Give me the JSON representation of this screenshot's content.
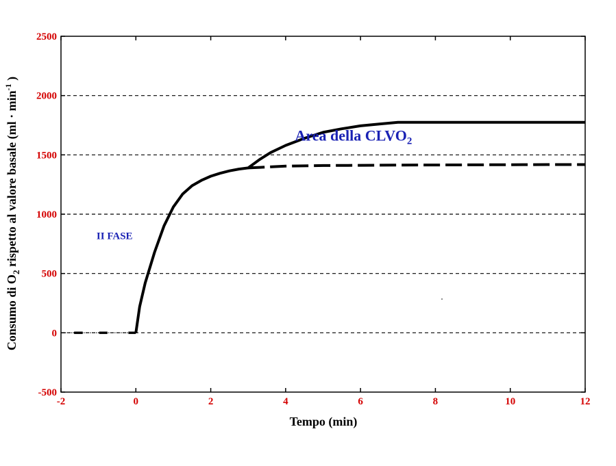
{
  "chart_data": {
    "type": "line",
    "xlabel": "Tempo (min)",
    "ylabel": {
      "part1": "Consumo di O",
      "sub": "2",
      "part2": " rispetto al valore basale (ml  · min",
      "sup": "-1",
      "part3": " )"
    },
    "xlim": [
      -2,
      12
    ],
    "ylim": [
      -500,
      2500
    ],
    "x_ticks": [
      -2,
      0,
      2,
      4,
      6,
      8,
      10,
      12
    ],
    "y_ticks": [
      -500,
      0,
      500,
      1000,
      1500,
      2000,
      2500
    ],
    "grid": "horizontal-dashed",
    "colors": {
      "tick_labels": "#d40000",
      "annotations": "#1a22b4",
      "lines": "#000000",
      "grid": "#000000"
    },
    "series": [
      {
        "style": "solid",
        "x": [
          0,
          0.1,
          0.25,
          0.5,
          0.75,
          1,
          1.25,
          1.5,
          1.75,
          2,
          2.25,
          2.5,
          2.75,
          3,
          3.3,
          3.6,
          4,
          4.5,
          5,
          5.5,
          6,
          6.5,
          7,
          8,
          9,
          10,
          11,
          12
        ],
        "y": [
          0,
          220,
          420,
          680,
          900,
          1060,
          1170,
          1240,
          1285,
          1320,
          1345,
          1365,
          1380,
          1390,
          1460,
          1520,
          1580,
          1640,
          1690,
          1720,
          1745,
          1760,
          1775,
          1775,
          1775,
          1775,
          1775,
          1775
        ]
      },
      {
        "style": "dashed",
        "x": [
          3,
          4,
          5,
          6,
          7,
          8,
          9,
          10,
          11,
          12
        ],
        "y": [
          1390,
          1405,
          1410,
          1412,
          1414,
          1415,
          1416,
          1417,
          1418,
          1418
        ]
      },
      {
        "style": "dash-dot-baseline",
        "x": [
          -2,
          -0.2
        ],
        "y": [
          0,
          0
        ]
      }
    ],
    "annotations": [
      {
        "text": "Area della CLVO",
        "sub": "2",
        "x": 4.25,
        "y": 1620
      },
      {
        "text": "II FASE",
        "x": -1.05,
        "y": 790
      }
    ]
  }
}
